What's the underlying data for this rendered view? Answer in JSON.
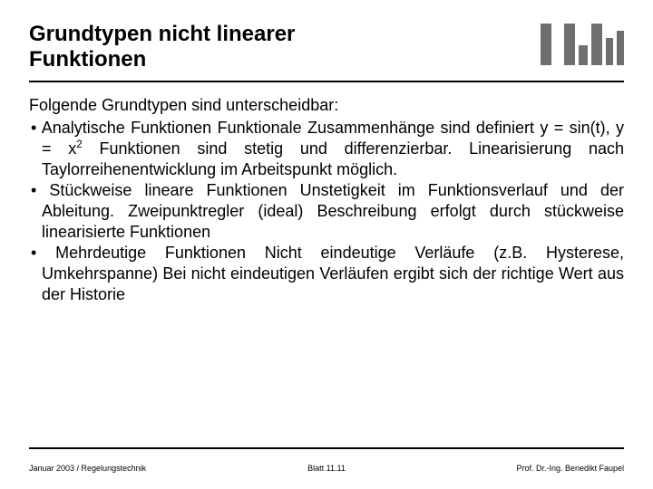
{
  "title_line1": "Grundtypen nicht linearer",
  "title_line2": "Funktionen",
  "intro": "Folgende Grundtypen sind unterscheidbar:",
  "bullets": [
    {
      "head": "Analytische Funktionen",
      "body_html": "Funktionale Zusammenhänge sind definiert y = sin(t), y = x<sup>2</sup> Funktionen sind stetig und differenzierbar. Linearisierung nach Taylorreihenentwicklung im Arbeitspunkt möglich."
    },
    {
      "head": "Stückweise lineare Funktionen",
      "body_html": "Unstetigkeit im Funktionsverlauf und der Ableitung. Zweipunktregler (ideal) Beschreibung erfolgt durch stückweise linearisierte Funktionen"
    },
    {
      "head": "Mehrdeutige Funktionen",
      "body_html": "Nicht eindeutige Verläufe (z.B. Hysterese, Umkehrspanne) Bei nicht eindeutigen Verläufen ergibt sich der richtige Wert aus der Historie"
    }
  ],
  "footer": {
    "left": "Januar 2003 / Regelungstechnik",
    "center": "Blatt 11.11",
    "right": "Prof. Dr.-Ing. Benedikt Faupel"
  },
  "colors": {
    "text": "#000000",
    "logo": "#706f6f",
    "bg": "#ffffff",
    "rule": "#000000"
  }
}
